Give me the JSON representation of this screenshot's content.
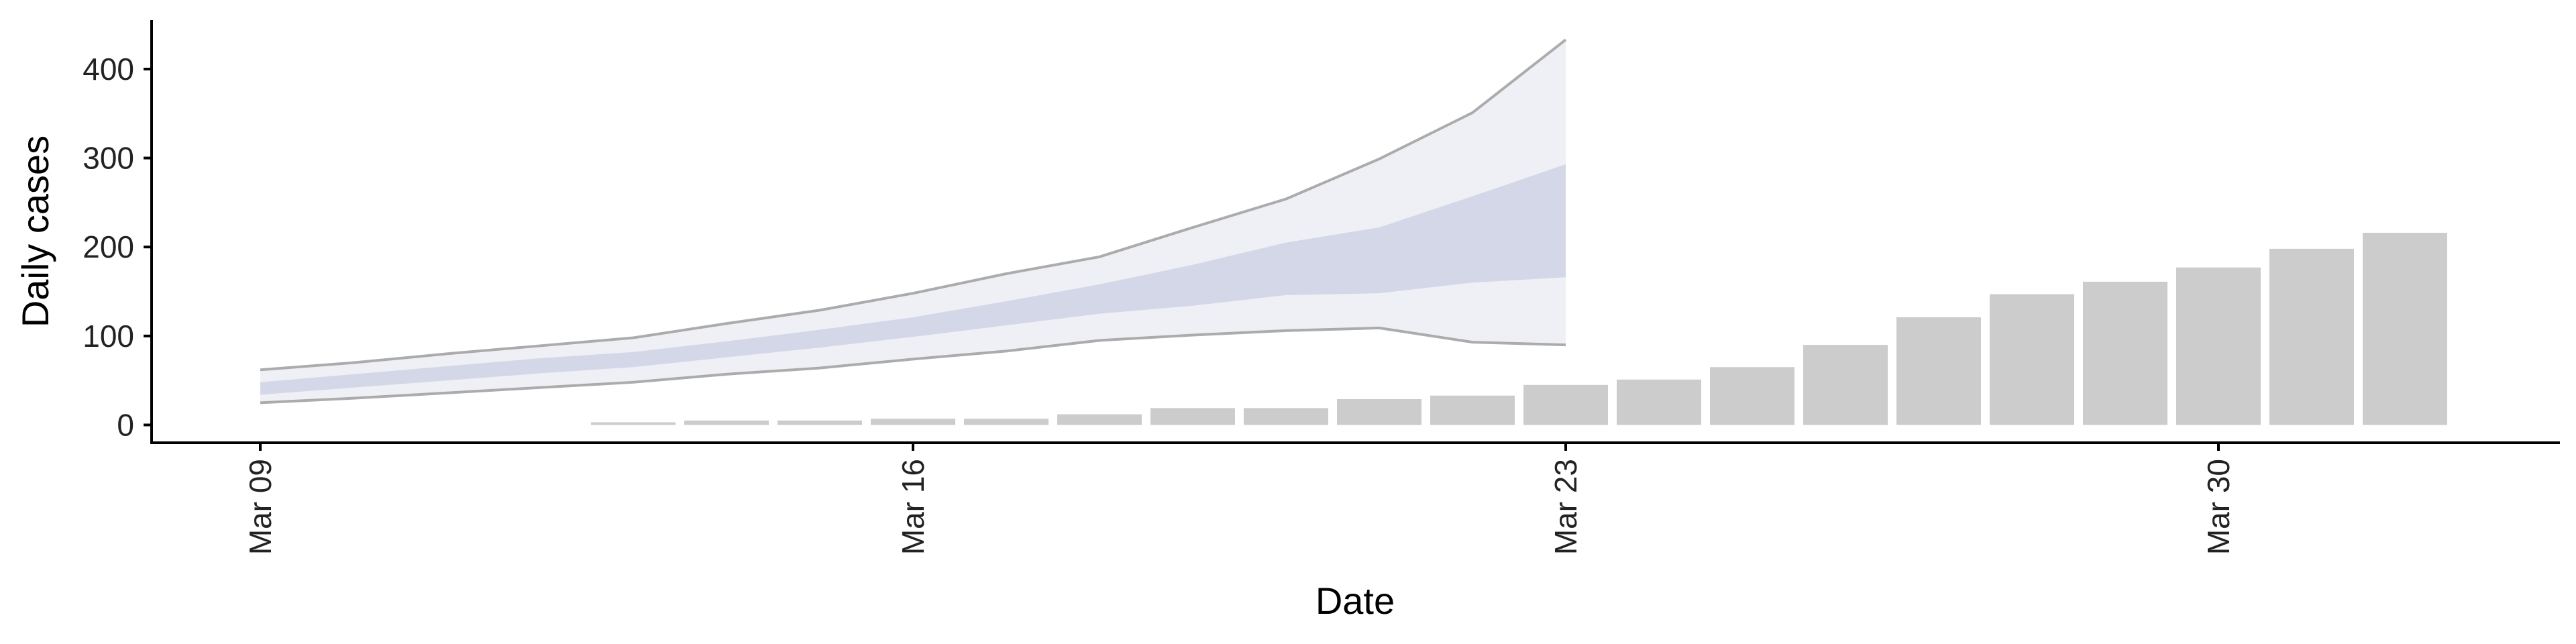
{
  "chart_data": {
    "type": "bar",
    "title": "",
    "xlabel": "Date",
    "ylabel": "Daily cases",
    "xlim": [
      "2020-03-09",
      "2020-04-02"
    ],
    "ylim": [
      -20,
      455
    ],
    "x_ticks": [
      {
        "date": "2020-03-09",
        "label": "Mar 09"
      },
      {
        "date": "2020-03-16",
        "label": "Mar 16"
      },
      {
        "date": "2020-03-23",
        "label": "Mar 23"
      },
      {
        "date": "2020-03-30",
        "label": "Mar 30"
      }
    ],
    "y_ticks": [
      0,
      100,
      200,
      300,
      400
    ],
    "grid": false,
    "bars": {
      "color": "#cccccc",
      "dates": [
        "2020-03-13",
        "2020-03-14",
        "2020-03-15",
        "2020-03-16",
        "2020-03-17",
        "2020-03-18",
        "2020-03-19",
        "2020-03-20",
        "2020-03-21",
        "2020-03-22",
        "2020-03-23",
        "2020-03-24",
        "2020-03-25",
        "2020-03-26",
        "2020-03-27",
        "2020-03-28",
        "2020-03-29",
        "2020-03-30",
        "2020-03-31",
        "2020-04-01",
        "2020-04-02"
      ],
      "values": [
        3,
        5,
        5,
        7,
        7,
        12,
        19,
        19,
        29,
        33,
        45,
        51,
        65,
        90,
        121,
        147,
        161,
        177,
        198,
        216,
        0
      ]
    },
    "forecast": {
      "dates": [
        "2020-03-09",
        "2020-03-10",
        "2020-03-11",
        "2020-03-12",
        "2020-03-13",
        "2020-03-14",
        "2020-03-15",
        "2020-03-16",
        "2020-03-17",
        "2020-03-18",
        "2020-03-19",
        "2020-03-20",
        "2020-03-21",
        "2020-03-22",
        "2020-03-23"
      ],
      "outer_lower": [
        25,
        30,
        36,
        42,
        48,
        57,
        64,
        74,
        83,
        95,
        101,
        106,
        109,
        93,
        90
      ],
      "outer_upper": [
        62,
        70,
        80,
        89,
        98,
        114,
        129,
        148,
        170,
        189,
        222,
        254,
        299,
        351,
        433
      ],
      "inner_lower": [
        34,
        42,
        50,
        58,
        65,
        76,
        87,
        99,
        112,
        125,
        134,
        146,
        148,
        160,
        166
      ],
      "inner_upper": [
        48,
        57,
        66,
        75,
        82,
        94,
        107,
        121,
        139,
        158,
        180,
        205,
        222,
        257,
        293
      ],
      "outer_line_color": "#999999",
      "outer_band_color": "#e9ebf2",
      "inner_band_color": "#c9cfe1"
    }
  }
}
